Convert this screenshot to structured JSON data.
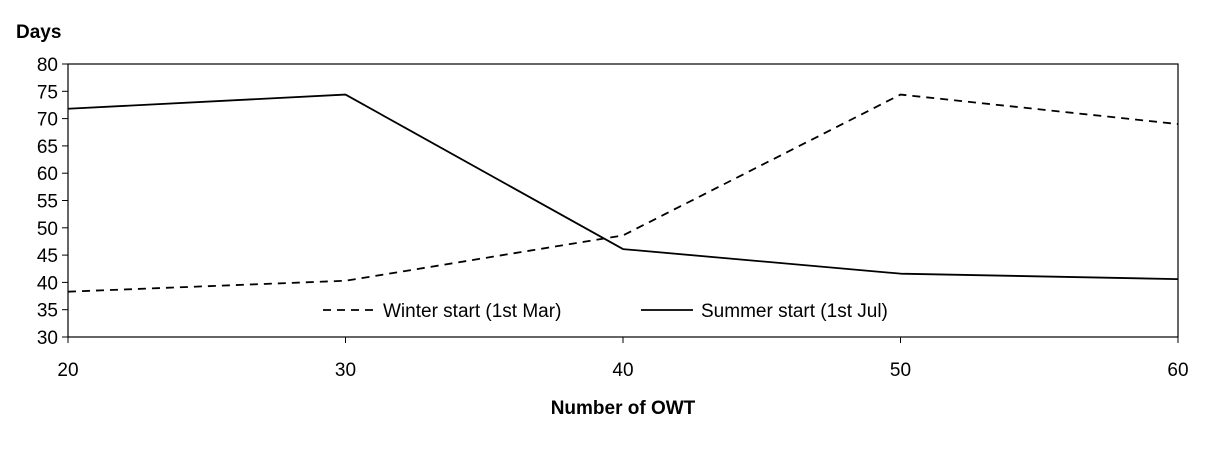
{
  "chart_data": {
    "type": "line",
    "title": "",
    "xlabel": "Number of OWT",
    "ylabel": "Days",
    "x": [
      20,
      30,
      40,
      50,
      60
    ],
    "xlim": [
      20,
      60
    ],
    "ylim": [
      30,
      80
    ],
    "x_ticks": [
      "20",
      "30",
      "40",
      "50",
      "60"
    ],
    "y_ticks": [
      "30",
      "35",
      "40",
      "45",
      "50",
      "55",
      "60",
      "65",
      "70",
      "75",
      "80"
    ],
    "grid": false,
    "legend_position": "bottom-center inside plot",
    "series": [
      {
        "name": "Winter start (1st Mar)",
        "style": "dashed",
        "color": "#000000",
        "values": [
          38.3,
          40.3,
          48.6,
          74.4,
          69.0
        ]
      },
      {
        "name": "Summer start (1st Jul)",
        "style": "solid",
        "color": "#000000",
        "values": [
          71.8,
          74.4,
          46.1,
          41.6,
          40.6
        ]
      }
    ]
  }
}
